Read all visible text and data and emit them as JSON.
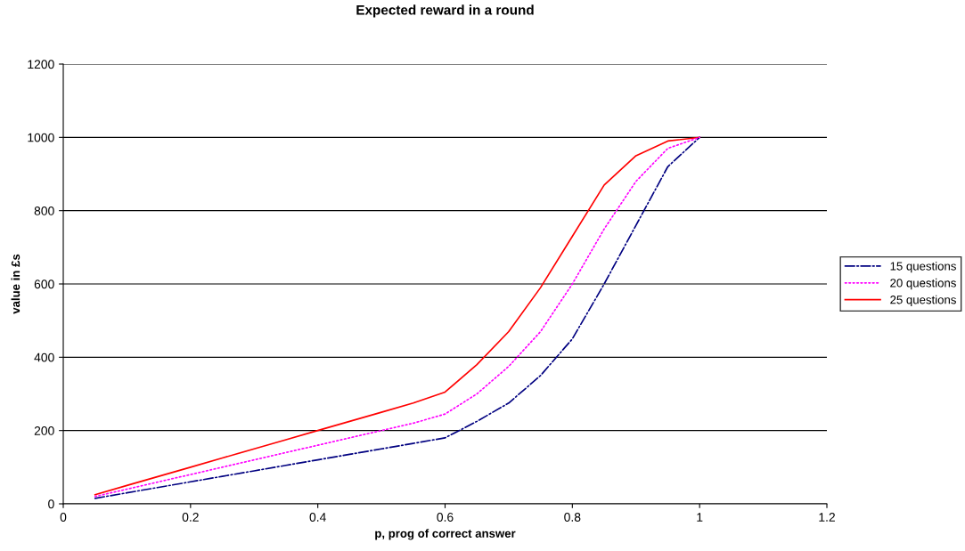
{
  "chart_data": {
    "type": "line",
    "title": "Expected reward in a round",
    "xlabel": "p, prog of correct answer",
    "ylabel": "value in £s",
    "x": [
      0.05,
      0.1,
      0.15,
      0.2,
      0.25,
      0.3,
      0.35,
      0.4,
      0.45,
      0.5,
      0.55,
      0.6,
      0.65,
      0.7,
      0.75,
      0.8,
      0.85,
      0.9,
      0.95,
      1.0
    ],
    "series": [
      {
        "name": "15 questions",
        "color": "#000080",
        "line_style": "dashdot",
        "values": [
          15,
          30,
          45,
          60,
          75,
          90,
          105,
          120,
          135,
          150,
          165,
          180,
          225,
          275,
          350,
          450,
          600,
          760,
          920,
          1000
        ]
      },
      {
        "name": "20 questions",
        "color": "#ff00ff",
        "line_style": "dotted",
        "values": [
          20,
          40,
          60,
          80,
          100,
          120,
          140,
          160,
          180,
          200,
          220,
          245,
          300,
          375,
          470,
          600,
          750,
          880,
          970,
          1000
        ]
      },
      {
        "name": "25 questions",
        "color": "#ff0000",
        "line_style": "solid",
        "values": [
          25,
          50,
          75,
          100,
          125,
          150,
          175,
          200,
          225,
          250,
          275,
          305,
          380,
          470,
          590,
          730,
          870,
          950,
          990,
          1000
        ]
      }
    ],
    "xlim": [
      0,
      1.2
    ],
    "xticks": [
      0,
      0.2,
      0.4,
      0.6,
      0.8,
      1,
      1.2
    ],
    "ylim": [
      0,
      1200
    ],
    "yticks": [
      0,
      200,
      400,
      600,
      800,
      1000,
      1200
    ],
    "grid": "y",
    "legend": "right",
    "marker": "none"
  }
}
